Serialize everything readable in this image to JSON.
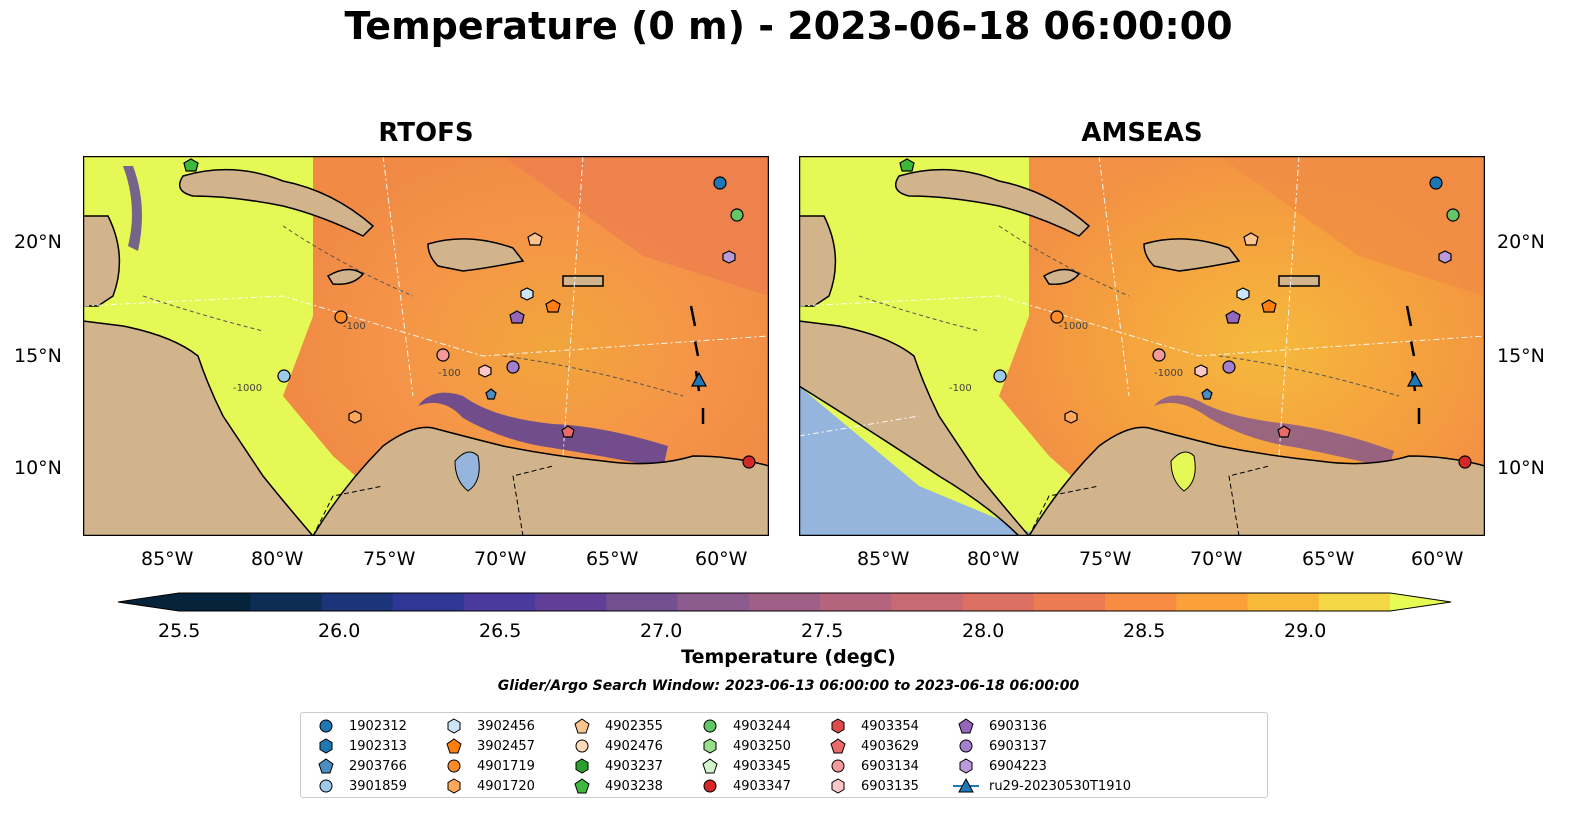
{
  "title": "Temperature (0 m) - 2023-06-18 06:00:00",
  "panels": [
    {
      "title": "RTOFS"
    },
    {
      "title": "AMSEAS"
    }
  ],
  "lon_ticks": [
    "85°W",
    "80°W",
    "75°W",
    "70°W",
    "65°W",
    "60°W"
  ],
  "lat_ticks": [
    "20°N",
    "15°N",
    "10°N"
  ],
  "contour_labels": [
    "-100",
    "-1000",
    "-100",
    "-1000",
    "-100",
    "-1000"
  ],
  "colorbar": {
    "label": "Temperature (degC)",
    "tick_labels": [
      "25.5",
      "26.0",
      "26.5",
      "27.0",
      "27.5",
      "28.0",
      "28.5",
      "29.0"
    ],
    "colors": [
      "#05233b",
      "#0d2d55",
      "#1c3479",
      "#2f3796",
      "#4a3a9e",
      "#613f99",
      "#745090",
      "#8a5b8c",
      "#a05f86",
      "#b5647e",
      "#c86a72",
      "#dc7163",
      "#ec7a52",
      "#f98c43",
      "#fba13c",
      "#f8b83a",
      "#f4d745"
    ],
    "extend_low_color": "#05233b",
    "extend_high_color": "#e8fb55"
  },
  "search_window": "Glider/Argo Search Window: 2023-06-13 06:00:00 to 2023-06-18 06:00:00",
  "legend": [
    {
      "label": "1902312",
      "marker": "circle",
      "color": "#1f77b4"
    },
    {
      "label": "1902313",
      "marker": "hexagon",
      "color": "#1f77b4"
    },
    {
      "label": "2903766",
      "marker": "pentagon",
      "color": "#4a8ec4"
    },
    {
      "label": "3901859",
      "marker": "circle",
      "color": "#9ecae9"
    },
    {
      "label": "3902456",
      "marker": "hexagon",
      "color": "#cce5f7"
    },
    {
      "label": "3902457",
      "marker": "pentagon",
      "color": "#ff7f0e"
    },
    {
      "label": "4901719",
      "marker": "circle",
      "color": "#ff8c2a"
    },
    {
      "label": "4901720",
      "marker": "hexagon",
      "color": "#ffa85a"
    },
    {
      "label": "4902355",
      "marker": "pentagon",
      "color": "#ffc38d"
    },
    {
      "label": "4902476",
      "marker": "circle",
      "color": "#ffd9b8"
    },
    {
      "label": "4903237",
      "marker": "hexagon",
      "color": "#2ca02c"
    },
    {
      "label": "4903238",
      "marker": "pentagon",
      "color": "#3db83d"
    },
    {
      "label": "4903244",
      "marker": "circle",
      "color": "#63c563"
    },
    {
      "label": "4903250",
      "marker": "hexagon",
      "color": "#98df8a"
    },
    {
      "label": "4903345",
      "marker": "pentagon",
      "color": "#d2f5cc"
    },
    {
      "label": "4903347",
      "marker": "circle",
      "color": "#d62728"
    },
    {
      "label": "4903354",
      "marker": "hexagon",
      "color": "#e04a4a"
    },
    {
      "label": "4903629",
      "marker": "pentagon",
      "color": "#ea6a6a"
    },
    {
      "label": "6903134",
      "marker": "circle",
      "color": "#f59a9a"
    },
    {
      "label": "6903135",
      "marker": "hexagon",
      "color": "#fbc6c6"
    },
    {
      "label": "6903136",
      "marker": "pentagon",
      "color": "#9467bd"
    },
    {
      "label": "6903137",
      "marker": "circle",
      "color": "#a57fcf"
    },
    {
      "label": "6904223",
      "marker": "hexagon",
      "color": "#b99bdc"
    },
    {
      "label": "ru29-20230530T1910",
      "marker": "triangle-line",
      "color": "#1f77b4"
    }
  ],
  "map_colors": {
    "land": "#d2b48c",
    "pacific": "#95b5dd",
    "warm": "#e6f855",
    "mid": "#f5a33a",
    "hot": "#f08a45",
    "cold": "#5b3f99"
  }
}
